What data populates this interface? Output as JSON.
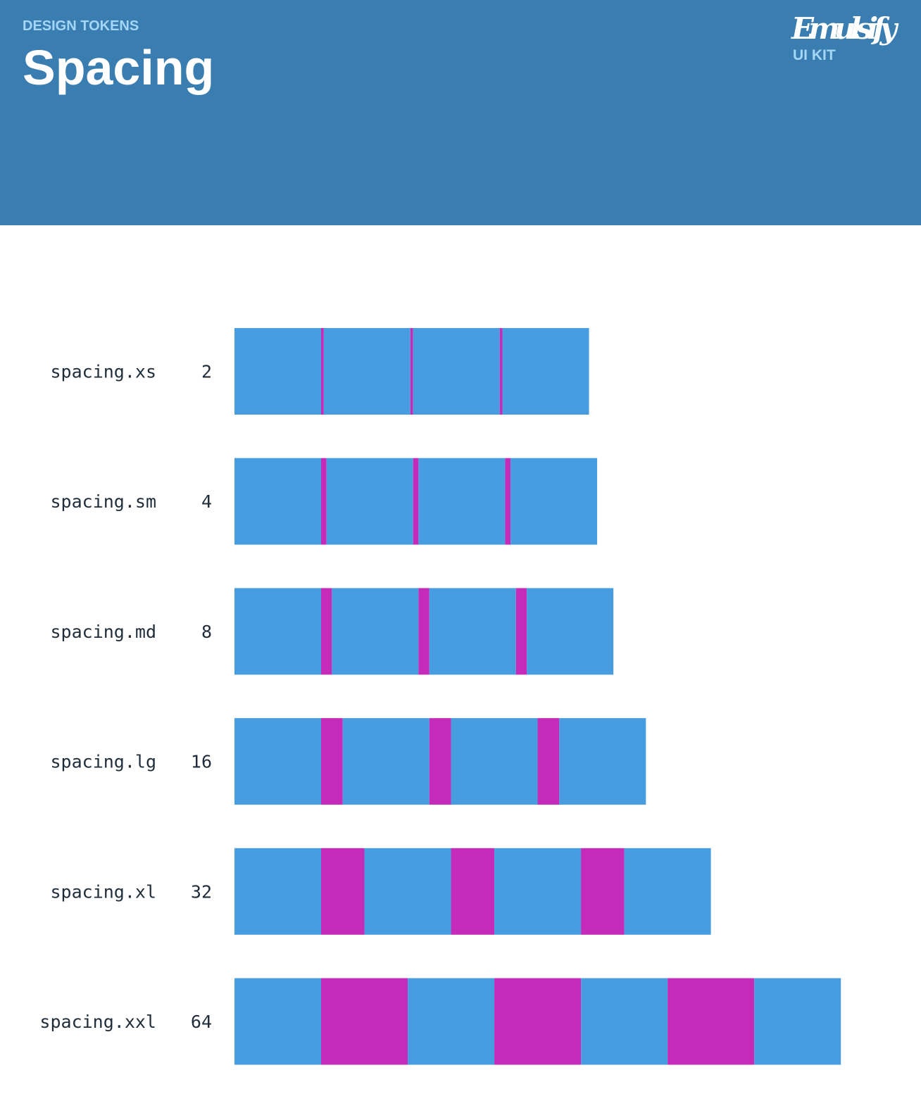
{
  "header": {
    "eyebrow": "DESIGN TOKENS",
    "title": "Spacing",
    "logo": {
      "name": "Emulsify",
      "subtitle": "UI KIT"
    }
  },
  "tokens": [
    {
      "name": "spacing.xs",
      "value": 2
    },
    {
      "name": "spacing.sm",
      "value": 4
    },
    {
      "name": "spacing.md",
      "value": 8
    },
    {
      "name": "spacing.lg",
      "value": 16
    },
    {
      "name": "spacing.xl",
      "value": 32
    },
    {
      "name": "spacing.xxl",
      "value": 64
    }
  ]
}
